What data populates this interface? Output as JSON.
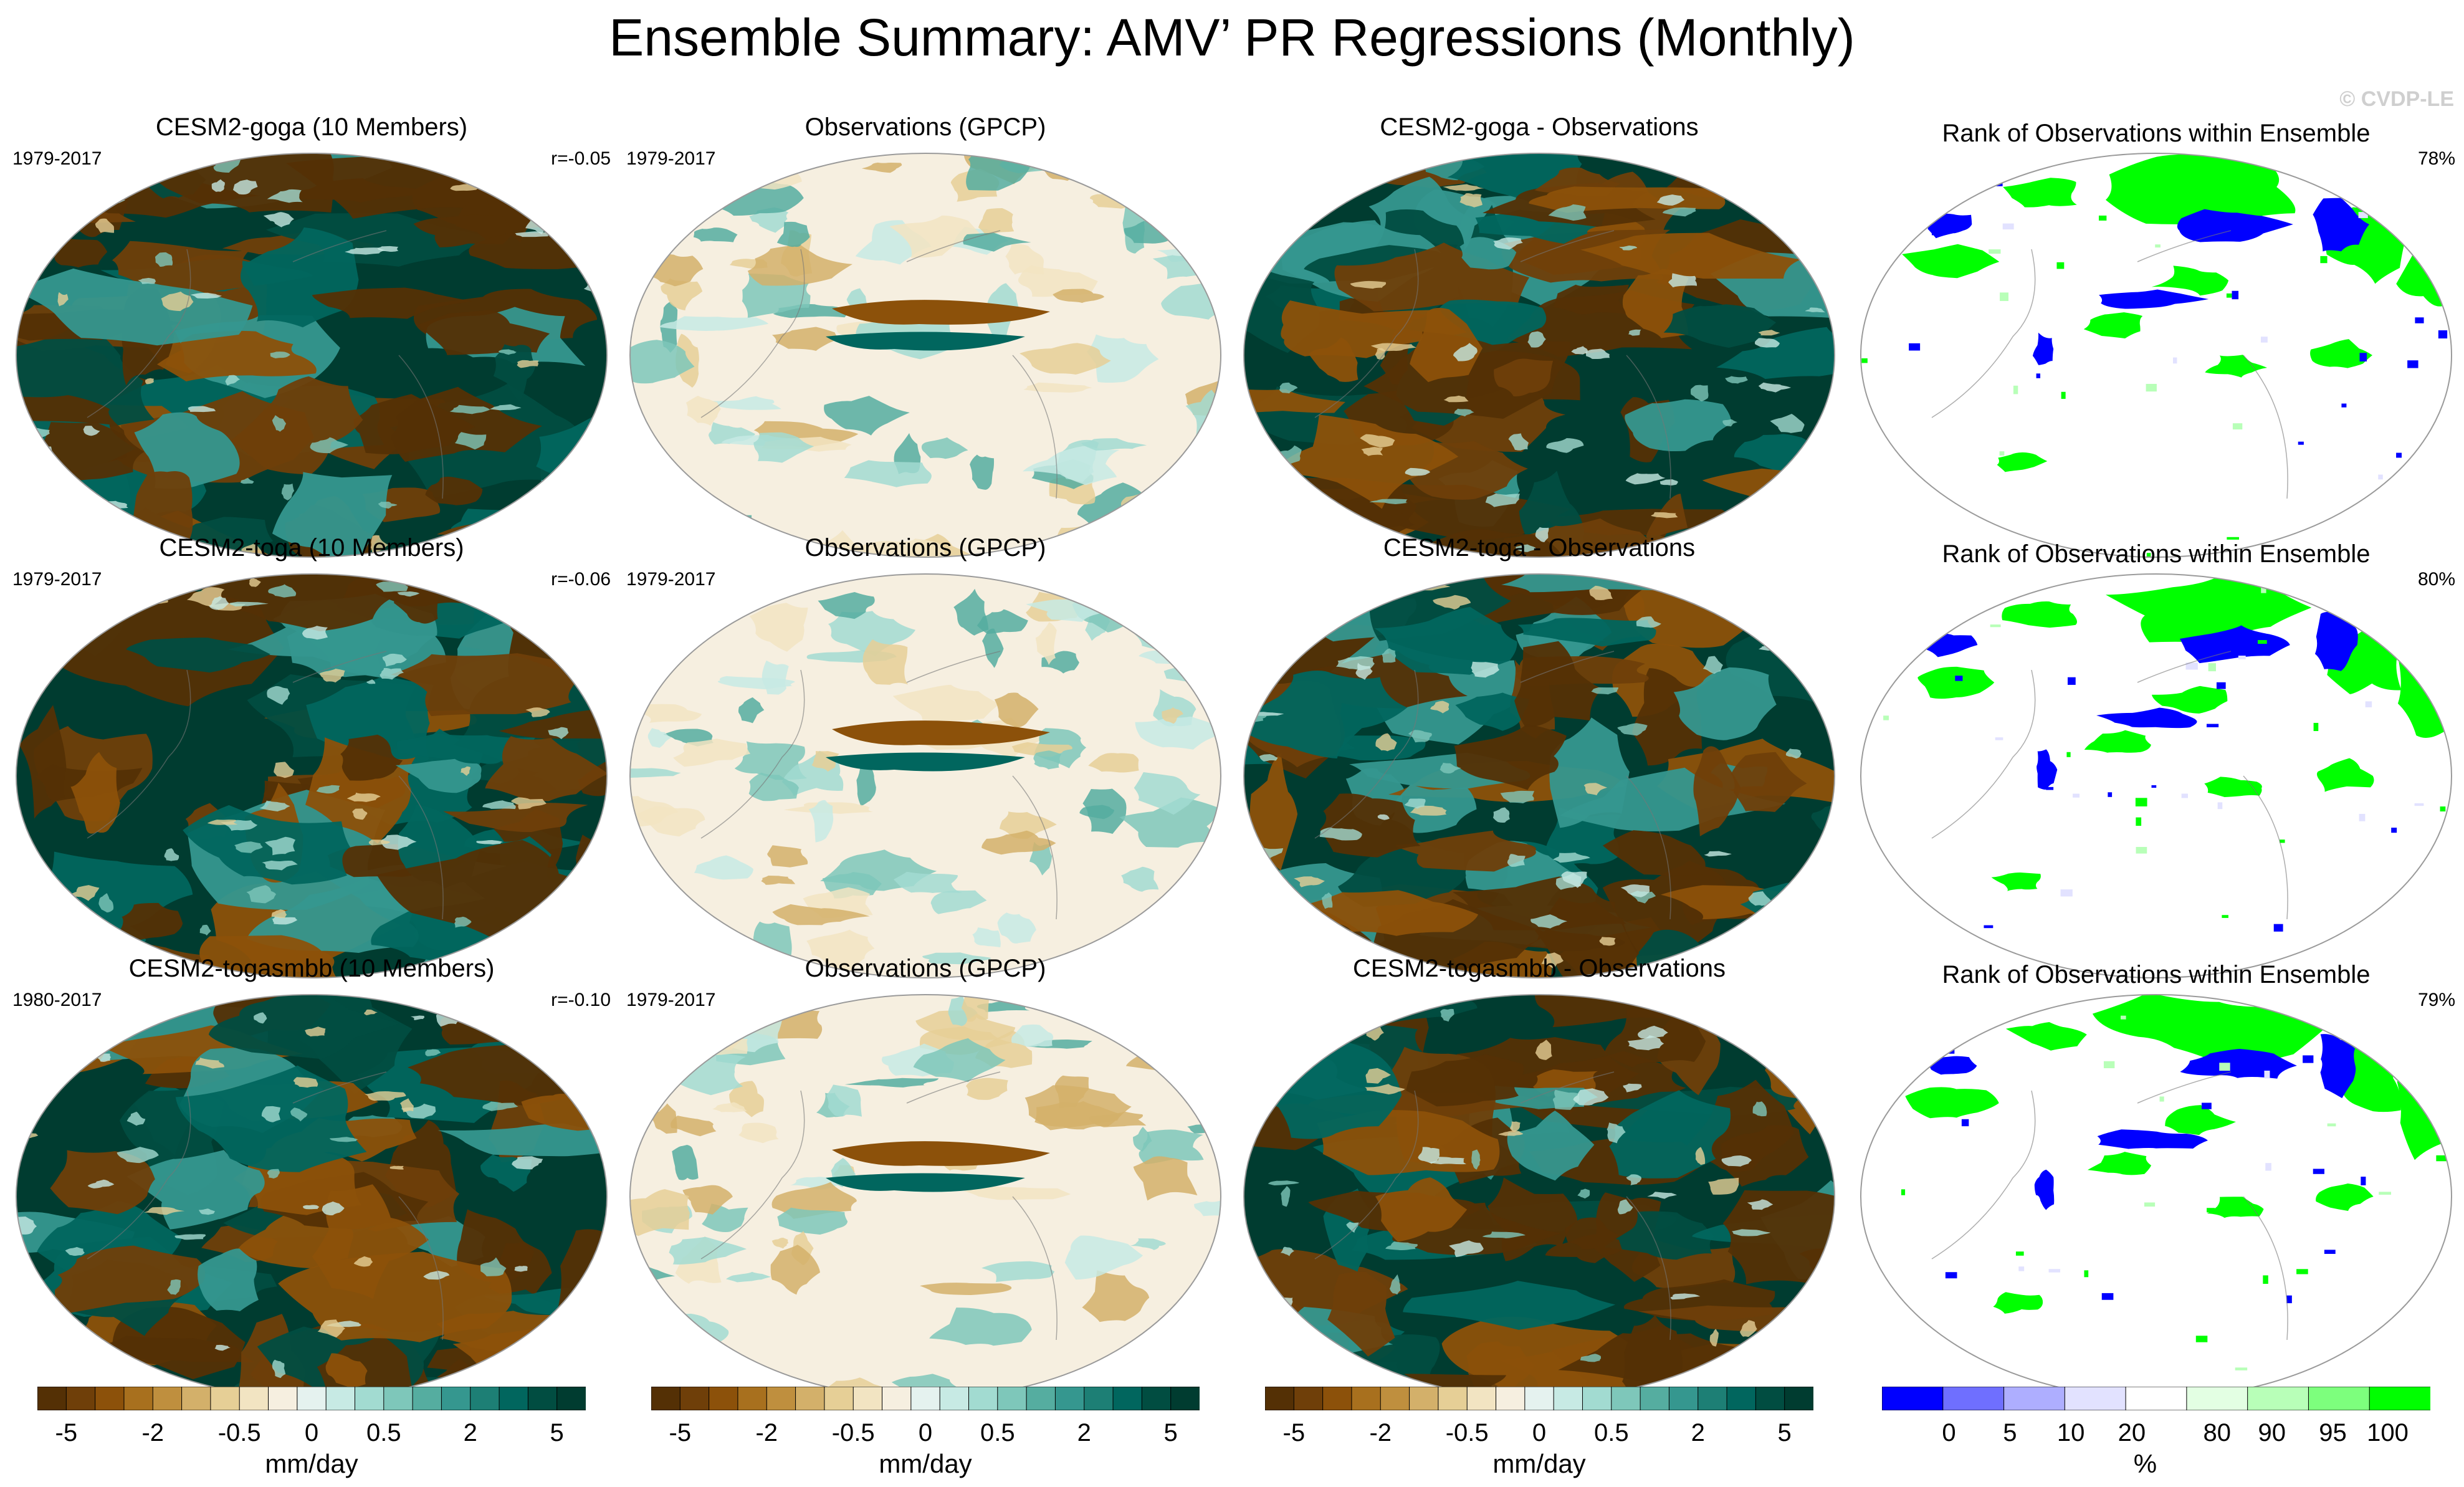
{
  "title": "Ensemble Summary: AMV’ PR Regressions (Monthly)",
  "credit": "© CVDP-LE",
  "colors": {
    "brbg": [
      "#543005",
      "#6f3f09",
      "#8c510a",
      "#a8701e",
      "#bf8f3e",
      "#d3b06a",
      "#e6cf96",
      "#f2e4c2",
      "#f6efe0",
      "#e5f2ef",
      "#c7eae4",
      "#a2dbd1",
      "#7ec7ba",
      "#55ada0",
      "#35978f",
      "#1d7f75",
      "#01665e",
      "#014d41",
      "#003c30"
    ],
    "rank": [
      "#0000ff",
      "#6f6fff",
      "#aeaeff",
      "#e2e2ff",
      "#ffffff",
      "#e3ffe3",
      "#b8ffb8",
      "#7dff7d",
      "#00ff00"
    ]
  },
  "rows": [
    {
      "ensemble": {
        "title": "CESM2-goga (10 Members)",
        "years": "1979-2017",
        "corr": "r=-0.05"
      },
      "obs": {
        "title": "Observations (GPCP)",
        "years": "1979-2017"
      },
      "diff": {
        "title": "CESM2-goga - Observations"
      },
      "rank": {
        "title": "Rank of Observations within Ensemble",
        "pct": "78%"
      }
    },
    {
      "ensemble": {
        "title": "CESM2-toga (10 Members)",
        "years": "1979-2017",
        "corr": "r=-0.06"
      },
      "obs": {
        "title": "Observations (GPCP)",
        "years": "1979-2017"
      },
      "diff": {
        "title": "CESM2-toga - Observations"
      },
      "rank": {
        "title": "Rank of Observations within Ensemble",
        "pct": "80%"
      }
    },
    {
      "ensemble": {
        "title": "CESM2-togasmbb (10 Members)",
        "years": "1980-2017",
        "corr": "r=-0.10"
      },
      "obs": {
        "title": "Observations (GPCP)",
        "years": "1979-2017"
      },
      "diff": {
        "title": "CESM2-togasmbb - Observations"
      },
      "rank": {
        "title": "Rank of Observations within Ensemble",
        "pct": "79%"
      }
    }
  ],
  "colorbars": [
    {
      "labels": [
        "-5",
        "-2",
        "-0.5",
        "0",
        "0.5",
        "2",
        "5"
      ],
      "unit": "mm/day"
    },
    {
      "labels": [
        "-5",
        "-2",
        "-0.5",
        "0",
        "0.5",
        "2",
        "5"
      ],
      "unit": "mm/day"
    },
    {
      "labels": [
        "-5",
        "-2",
        "-0.5",
        "0",
        "0.5",
        "2",
        "5"
      ],
      "unit": "mm/day"
    },
    {
      "labels": [
        "0",
        "5",
        "10",
        "20",
        "80",
        "90",
        "95",
        "100"
      ],
      "unit": "%"
    }
  ],
  "chart_data": [
    {
      "type": "heatmap",
      "title": "Ensemble Summary: AMV’ PR Regressions (Monthly)",
      "field": "PR regression onto AMV",
      "units": "mm/day",
      "colorbar_levels": [
        -5,
        -2,
        -0.5,
        0,
        0.5,
        2,
        5
      ],
      "panels": [
        "CESM2-goga (10 Members)",
        "Observations (GPCP)",
        "CESM2-goga - Observations",
        "CESM2-toga (10 Members)",
        "Observations (GPCP)",
        "CESM2-toga - Observations",
        "CESM2-togasmbb (10 Members)",
        "Observations (GPCP)",
        "CESM2-togasmbb - Observations"
      ],
      "pattern_correlations": {
        "CESM2-goga": -0.05,
        "CESM2-toga": -0.06,
        "CESM2-togasmbb": -0.1
      }
    },
    {
      "type": "heatmap",
      "title": "Rank of Observations within Ensemble",
      "units": "%",
      "colorbar_levels": [
        0,
        5,
        10,
        20,
        80,
        90,
        95,
        100
      ],
      "pct_in_range": {
        "CESM2-goga": 78,
        "CESM2-toga": 80,
        "CESM2-togasmbb": 79
      }
    }
  ]
}
